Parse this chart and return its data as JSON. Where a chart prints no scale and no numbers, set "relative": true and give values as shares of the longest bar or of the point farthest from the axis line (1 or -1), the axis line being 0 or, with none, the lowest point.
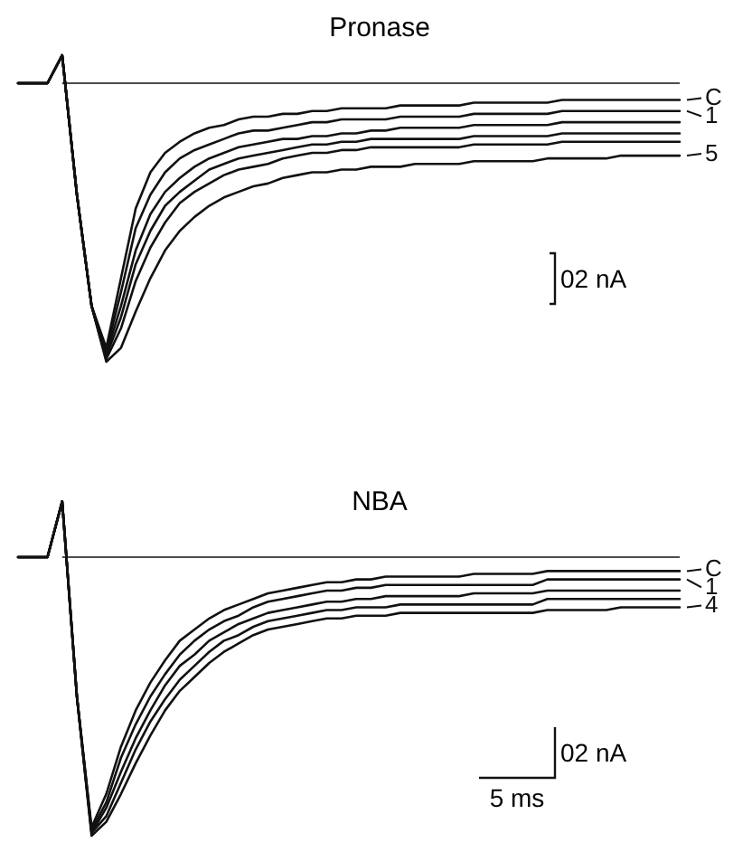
{
  "chart_data": [
    {
      "type": "line",
      "title": "Pronase",
      "relative": true,
      "legend": "right",
      "line_style": "solid",
      "categories": [
        null,
        null,
        null,
        null,
        null,
        null,
        null,
        null,
        null,
        null,
        null,
        null,
        null,
        null,
        null,
        null,
        null,
        null,
        null,
        null,
        null,
        null,
        null,
        null,
        null,
        null,
        null,
        null,
        null,
        null,
        null,
        null,
        null,
        null,
        null,
        null,
        null,
        null,
        null,
        null,
        null,
        null,
        null,
        null,
        null,
        null
      ],
      "ref_lines": [
        {
          "axis": "y",
          "value": 0
        }
      ],
      "annotations": [
        "02 nA"
      ],
      "series": [
        {
          "name": "C",
          "color": "#111111",
          "values": [
            0,
            0,
            0,
            0.1,
            -0.4,
            -0.8,
            -0.95,
            -0.7,
            -0.45,
            -0.32,
            -0.25,
            -0.21,
            -0.18,
            -0.16,
            -0.15,
            -0.13,
            -0.12,
            -0.12,
            -0.11,
            -0.11,
            -0.1,
            -0.1,
            -0.09,
            -0.09,
            -0.09,
            -0.09,
            -0.08,
            -0.08,
            -0.08,
            -0.08,
            -0.08,
            -0.07,
            -0.07,
            -0.07,
            -0.07,
            -0.07,
            -0.07,
            -0.06,
            -0.06,
            -0.06,
            -0.06,
            -0.06,
            -0.06,
            -0.06,
            -0.06,
            -0.06
          ]
        },
        {
          "name": "1",
          "color": "#111111",
          "values": [
            0,
            0,
            0,
            0.1,
            -0.4,
            -0.8,
            -0.96,
            -0.75,
            -0.52,
            -0.4,
            -0.32,
            -0.27,
            -0.24,
            -0.22,
            -0.2,
            -0.18,
            -0.17,
            -0.17,
            -0.16,
            -0.15,
            -0.14,
            -0.14,
            -0.13,
            -0.13,
            -0.13,
            -0.13,
            -0.12,
            -0.12,
            -0.12,
            -0.12,
            -0.12,
            -0.11,
            -0.11,
            -0.11,
            -0.11,
            -0.11,
            -0.11,
            -0.1,
            -0.1,
            -0.1,
            -0.1,
            -0.1,
            -0.1,
            -0.1,
            -0.1,
            -0.1
          ]
        },
        {
          "color": "#111111",
          "values": [
            0,
            0,
            0,
            0.1,
            -0.4,
            -0.8,
            -0.97,
            -0.8,
            -0.6,
            -0.47,
            -0.39,
            -0.34,
            -0.3,
            -0.27,
            -0.25,
            -0.23,
            -0.22,
            -0.21,
            -0.2,
            -0.2,
            -0.19,
            -0.19,
            -0.18,
            -0.18,
            -0.17,
            -0.17,
            -0.16,
            -0.16,
            -0.16,
            -0.16,
            -0.16,
            -0.15,
            -0.15,
            -0.15,
            -0.15,
            -0.15,
            -0.15,
            -0.14,
            -0.14,
            -0.14,
            -0.14,
            -0.14,
            -0.14,
            -0.14,
            -0.14,
            -0.14
          ]
        },
        {
          "color": "#111111",
          "values": [
            0,
            0,
            0,
            0.1,
            -0.4,
            -0.8,
            -0.98,
            -0.84,
            -0.65,
            -0.53,
            -0.44,
            -0.39,
            -0.35,
            -0.31,
            -0.29,
            -0.27,
            -0.26,
            -0.25,
            -0.24,
            -0.23,
            -0.22,
            -0.22,
            -0.21,
            -0.21,
            -0.2,
            -0.2,
            -0.2,
            -0.2,
            -0.2,
            -0.2,
            -0.2,
            -0.19,
            -0.19,
            -0.19,
            -0.19,
            -0.19,
            -0.19,
            -0.18,
            -0.18,
            -0.18,
            -0.18,
            -0.18,
            -0.18,
            -0.18,
            -0.18,
            -0.18
          ]
        },
        {
          "color": "#111111",
          "values": [
            0,
            0,
            0,
            0.1,
            -0.4,
            -0.8,
            -0.99,
            -0.88,
            -0.71,
            -0.59,
            -0.5,
            -0.43,
            -0.39,
            -0.36,
            -0.33,
            -0.31,
            -0.3,
            -0.29,
            -0.27,
            -0.26,
            -0.25,
            -0.25,
            -0.24,
            -0.24,
            -0.23,
            -0.23,
            -0.23,
            -0.23,
            -0.23,
            -0.23,
            -0.23,
            -0.22,
            -0.22,
            -0.22,
            -0.22,
            -0.22,
            -0.22,
            -0.21,
            -0.21,
            -0.21,
            -0.21,
            -0.21,
            -0.21,
            -0.21,
            -0.21,
            -0.21
          ]
        },
        {
          "name": "5",
          "color": "#111111",
          "values": [
            0,
            0,
            0,
            0.1,
            -0.4,
            -0.8,
            -1,
            -0.95,
            -0.82,
            -0.7,
            -0.6,
            -0.53,
            -0.48,
            -0.44,
            -0.41,
            -0.39,
            -0.37,
            -0.36,
            -0.34,
            -0.33,
            -0.32,
            -0.32,
            -0.31,
            -0.31,
            -0.3,
            -0.3,
            -0.3,
            -0.29,
            -0.29,
            -0.29,
            -0.29,
            -0.28,
            -0.28,
            -0.28,
            -0.28,
            -0.28,
            -0.27,
            -0.27,
            -0.27,
            -0.27,
            -0.27,
            -0.26,
            -0.26,
            -0.26,
            -0.26,
            -0.26
          ]
        }
      ]
    },
    {
      "type": "line",
      "title": "NBA",
      "relative": true,
      "legend": "right",
      "line_style": "solid",
      "categories": [
        null,
        null,
        null,
        null,
        null,
        null,
        null,
        null,
        null,
        null,
        null,
        null,
        null,
        null,
        null,
        null,
        null,
        null,
        null,
        null,
        null,
        null,
        null,
        null,
        null,
        null,
        null,
        null,
        null,
        null,
        null,
        null,
        null,
        null,
        null,
        null,
        null,
        null,
        null,
        null,
        null,
        null,
        null,
        null,
        null,
        null
      ],
      "ref_lines": [
        {
          "axis": "y",
          "value": 0
        }
      ],
      "annotations": [
        "02 nA",
        "5 ms"
      ],
      "series": [
        {
          "name": "C",
          "color": "#111111",
          "values": [
            0,
            0,
            0,
            0.2,
            -0.5,
            -0.97,
            -0.85,
            -0.68,
            -0.55,
            -0.45,
            -0.37,
            -0.3,
            -0.26,
            -0.22,
            -0.19,
            -0.17,
            -0.15,
            -0.13,
            -0.12,
            -0.11,
            -0.1,
            -0.09,
            -0.09,
            -0.08,
            -0.08,
            -0.07,
            -0.07,
            -0.07,
            -0.07,
            -0.07,
            -0.07,
            -0.06,
            -0.06,
            -0.06,
            -0.06,
            -0.06,
            -0.05,
            -0.05,
            -0.05,
            -0.05,
            -0.05,
            -0.05,
            -0.05,
            -0.05,
            -0.05,
            -0.05
          ]
        },
        {
          "name": "1",
          "color": "#111111",
          "values": [
            0,
            0,
            0,
            0.2,
            -0.5,
            -0.98,
            -0.88,
            -0.72,
            -0.6,
            -0.5,
            -0.42,
            -0.35,
            -0.3,
            -0.26,
            -0.23,
            -0.21,
            -0.18,
            -0.16,
            -0.15,
            -0.14,
            -0.13,
            -0.12,
            -0.12,
            -0.11,
            -0.11,
            -0.1,
            -0.1,
            -0.1,
            -0.1,
            -0.1,
            -0.1,
            -0.1,
            -0.1,
            -0.1,
            -0.1,
            -0.1,
            -0.08,
            -0.08,
            -0.08,
            -0.08,
            -0.08,
            -0.08,
            -0.08,
            -0.08,
            -0.08,
            -0.08
          ]
        },
        {
          "color": "#111111",
          "values": [
            0,
            0,
            0,
            0.2,
            -0.5,
            -0.99,
            -0.9,
            -0.77,
            -0.65,
            -0.55,
            -0.46,
            -0.39,
            -0.35,
            -0.3,
            -0.27,
            -0.24,
            -0.22,
            -0.2,
            -0.19,
            -0.18,
            -0.17,
            -0.16,
            -0.16,
            -0.15,
            -0.15,
            -0.14,
            -0.14,
            -0.14,
            -0.14,
            -0.14,
            -0.14,
            -0.13,
            -0.13,
            -0.13,
            -0.13,
            -0.13,
            -0.12,
            -0.12,
            -0.12,
            -0.12,
            -0.12,
            -0.12,
            -0.12,
            -0.12,
            -0.12,
            -0.12
          ]
        },
        {
          "color": "#111111",
          "values": [
            0,
            0,
            0,
            0.2,
            -0.5,
            -0.99,
            -0.93,
            -0.81,
            -0.69,
            -0.59,
            -0.51,
            -0.44,
            -0.39,
            -0.34,
            -0.3,
            -0.28,
            -0.25,
            -0.23,
            -0.22,
            -0.21,
            -0.2,
            -0.19,
            -0.19,
            -0.18,
            -0.18,
            -0.18,
            -0.17,
            -0.17,
            -0.17,
            -0.17,
            -0.17,
            -0.17,
            -0.17,
            -0.17,
            -0.17,
            -0.17,
            -0.15,
            -0.15,
            -0.15,
            -0.15,
            -0.15,
            -0.15,
            -0.15,
            -0.15,
            -0.15,
            -0.15
          ]
        },
        {
          "name": "4",
          "color": "#111111",
          "values": [
            0,
            0,
            0,
            0.2,
            -0.5,
            -1,
            -0.95,
            -0.85,
            -0.74,
            -0.64,
            -0.55,
            -0.48,
            -0.43,
            -0.38,
            -0.34,
            -0.31,
            -0.28,
            -0.26,
            -0.25,
            -0.24,
            -0.23,
            -0.22,
            -0.22,
            -0.21,
            -0.21,
            -0.21,
            -0.2,
            -0.2,
            -0.2,
            -0.2,
            -0.2,
            -0.2,
            -0.2,
            -0.2,
            -0.2,
            -0.2,
            -0.19,
            -0.19,
            -0.19,
            -0.19,
            -0.19,
            -0.18,
            -0.18,
            -0.18,
            -0.18,
            -0.18
          ]
        }
      ]
    }
  ]
}
